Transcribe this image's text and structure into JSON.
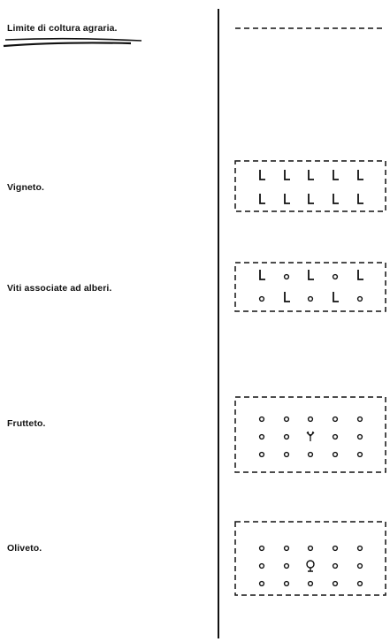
{
  "legend": {
    "items": [
      {
        "id": "limite",
        "label": "Limite di coltura agraria."
      },
      {
        "id": "vigneto",
        "label": "Vigneto."
      },
      {
        "id": "viti",
        "label": "Viti associate ad alberi."
      },
      {
        "id": "frutteto",
        "label": "Frutteto."
      },
      {
        "id": "oliveto",
        "label": "Oliveto."
      }
    ],
    "symbols": {
      "vine": "L",
      "tree": "o",
      "fruit_tree_center": "fruit-tree-glyph",
      "olive_tree_center": "olive-tree-glyph"
    }
  },
  "style": {
    "ink": "#111111",
    "paper": "#ffffff"
  }
}
